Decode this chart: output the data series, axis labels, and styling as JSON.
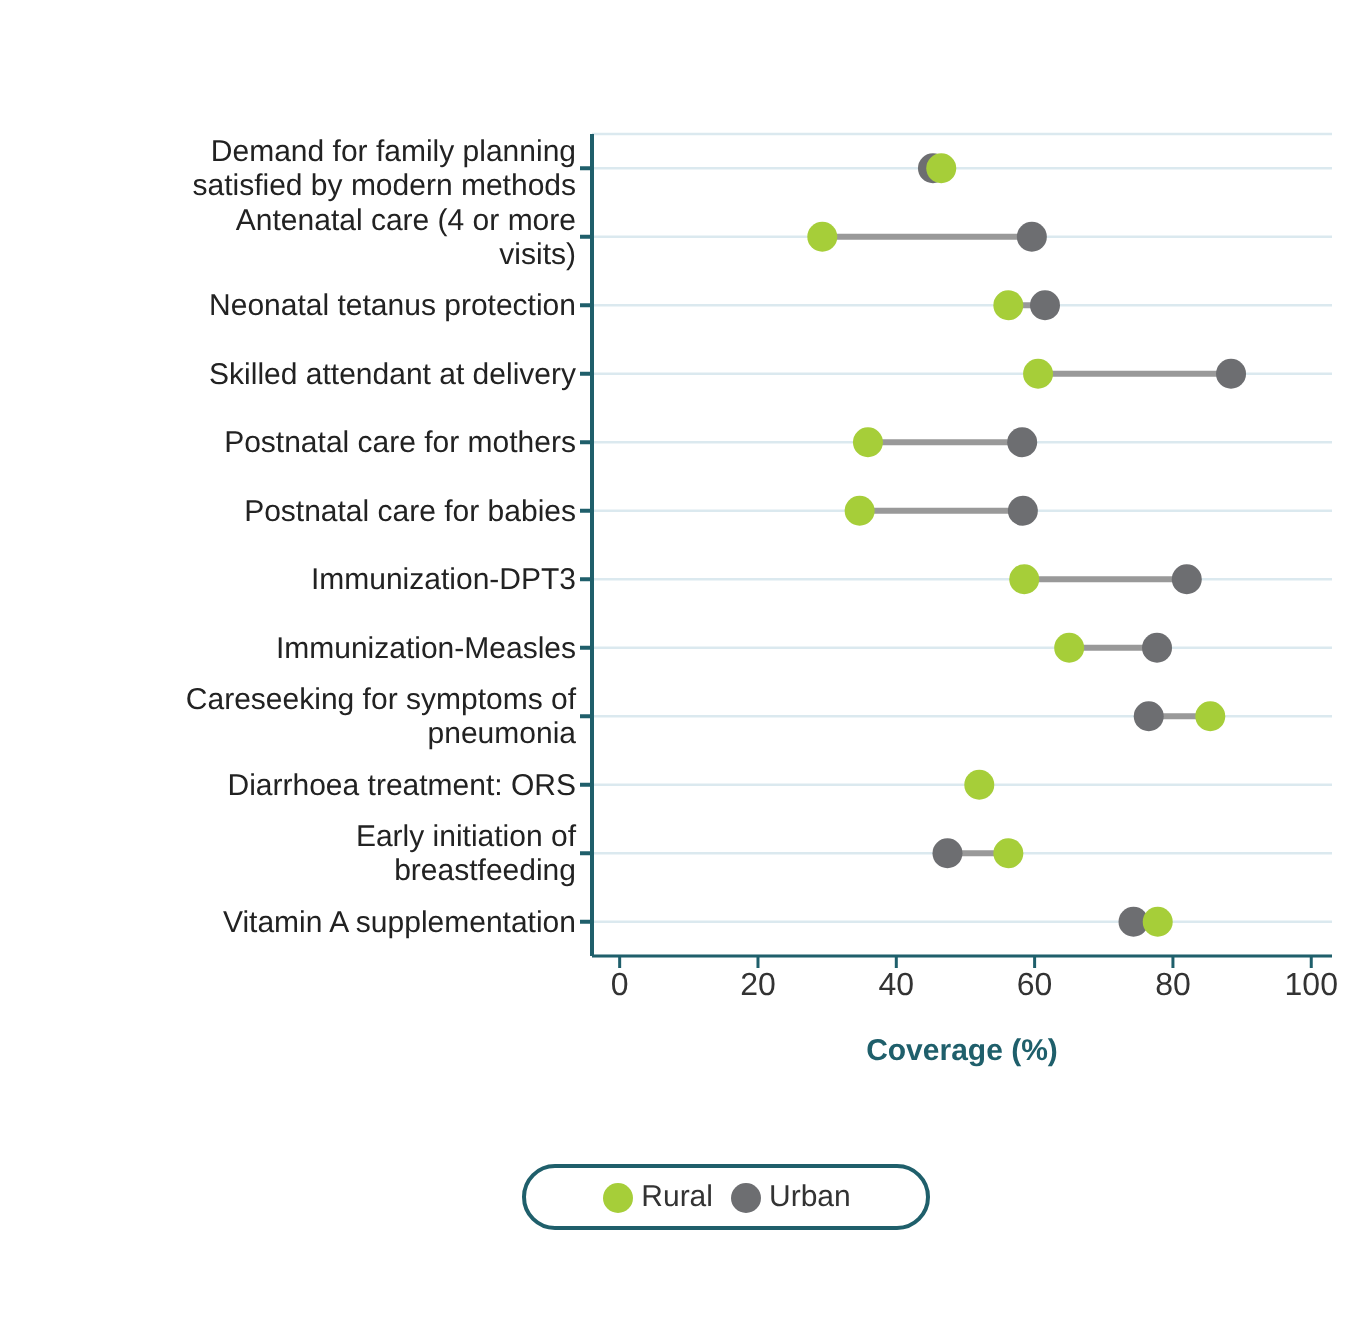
{
  "chart_data": {
    "type": "scatter",
    "orientation": "horizontal",
    "xlabel": "Coverage (%)",
    "categories": [
      "Demand for family planning satisfied by modern methods",
      "Antenatal care (4 or more visits)",
      "Neonatal tetanus protection",
      "Skilled attendant at delivery",
      "Postnatal care for mothers",
      "Postnatal care for babies",
      "Immunization-DPT3",
      "Immunization-Measles",
      "Careseeking for symptoms of pneumonia",
      "Diarrhoea treatment: ORS",
      "Early initiation of breastfeeding",
      "Vitamin A supplementation"
    ],
    "series": [
      {
        "name": "Urban",
        "color": "#6d6e71",
        "values": [
          45.3,
          59.6,
          61.5,
          88.4,
          58.2,
          58.3,
          82,
          77.7,
          76.5,
          null,
          47.4,
          74.3
        ]
      },
      {
        "name": "Rural",
        "color": "#a6ce39",
        "values": [
          46.5,
          29.3,
          56.2,
          60.5,
          35.9,
          34.7,
          58.5,
          65,
          85.4,
          52,
          56.2,
          77.8
        ]
      }
    ],
    "xlim": [
      -4,
      103
    ],
    "xticks": [
      0,
      20,
      40,
      60,
      80,
      100
    ],
    "grid": "y",
    "legend": "bottom",
    "marker": "circle"
  }
}
